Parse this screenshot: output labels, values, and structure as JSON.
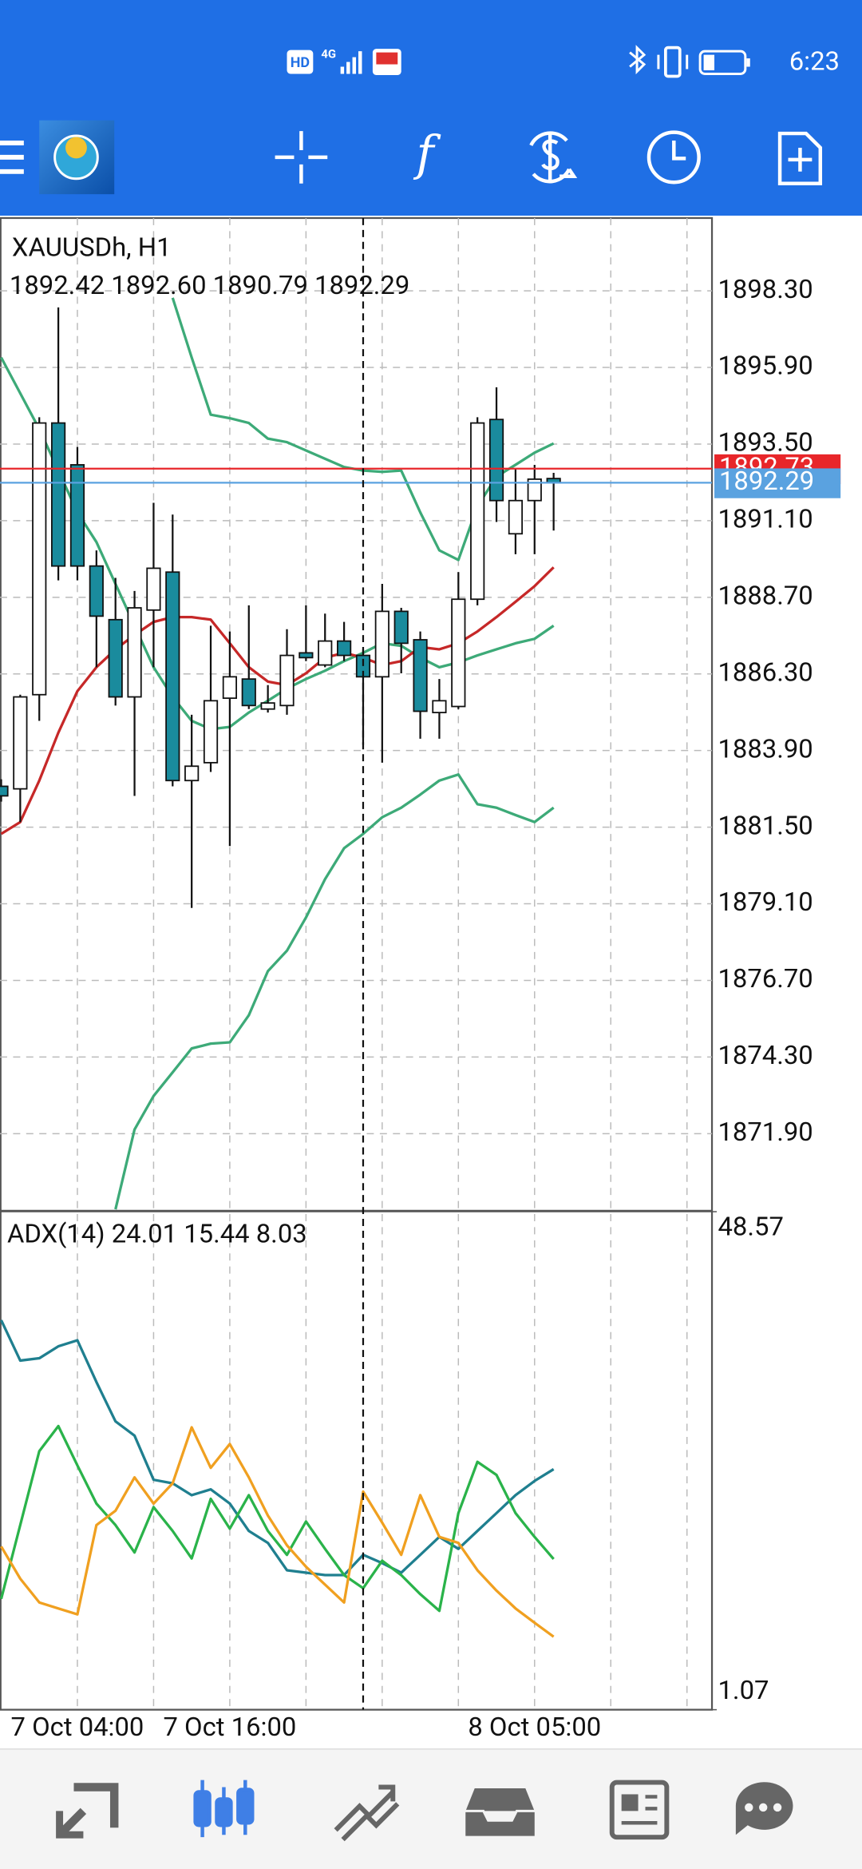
{
  "status_bar": {
    "network": "HD",
    "signal": "4G",
    "time": "6:23"
  },
  "toolbar": {
    "function_icon": "f"
  },
  "chart_data": [
    {
      "type": "candlestick",
      "title": "XAUUSDh, H1",
      "ohlc_label": "1892.42 1892.60 1890.79 1892.29",
      "categories": [
        null,
        null,
        null,
        null,
        "7 Oct 04:00",
        null,
        null,
        null,
        null,
        null,
        null,
        null,
        "7 Oct 16:00",
        null,
        null,
        null,
        null,
        null,
        null,
        null,
        null,
        null,
        null,
        null,
        null,
        null,
        null,
        null,
        "8 Oct 05:00",
        null
      ],
      "open": [
        1882.78,
        1882.7,
        1885.65,
        1894.16,
        1892.85,
        1889.68,
        1888.0,
        1885.58,
        1888.3,
        1889.49,
        1882.96,
        1883.52,
        1885.54,
        1886.14,
        1885.2,
        1885.31,
        1886.96,
        1886.58,
        1887.33,
        1886.88,
        1886.21,
        1888.26,
        1887.37,
        1885.09,
        1885.28,
        1888.64,
        1894.27,
        1890.69,
        1891.73,
        1892.42
      ],
      "high": [
        1883.0,
        1885.65,
        1894.34,
        1897.78,
        1893.41,
        1890.17,
        1889.31,
        1888.9,
        1891.66,
        1891.29,
        1885.02,
        1887.81,
        1887.63,
        1888.45,
        1885.95,
        1887.7,
        1888.45,
        1888.19,
        1887.93,
        1887.07,
        1889.12,
        1888.37,
        1887.63,
        1886.14,
        1889.49,
        1894.34,
        1895.28,
        1892.74,
        1892.85,
        1892.6
      ],
      "low": [
        1882.3,
        1881.66,
        1884.83,
        1889.23,
        1889.23,
        1886.51,
        1885.31,
        1882.48,
        1886.51,
        1882.78,
        1878.97,
        1883.23,
        1880.91,
        1885.2,
        1885.09,
        1885.02,
        1886.7,
        1886.51,
        1886.7,
        1884.08,
        1883.52,
        1886.32,
        1884.27,
        1884.27,
        1885.2,
        1888.45,
        1891.06,
        1890.05,
        1890.05,
        1890.79
      ],
      "close": [
        1882.48,
        1885.58,
        1894.16,
        1889.68,
        1889.68,
        1888.11,
        1885.58,
        1888.37,
        1889.61,
        1882.96,
        1883.41,
        1885.46,
        1886.21,
        1885.31,
        1885.39,
        1886.88,
        1886.81,
        1887.33,
        1886.88,
        1886.21,
        1888.26,
        1887.26,
        1885.13,
        1885.46,
        1888.64,
        1894.16,
        1891.73,
        1891.73,
        1892.4,
        1892.29
      ],
      "up_color": "#ffffff",
      "down_color": "#1a8b9d",
      "ylim": [
        1869.53,
        1900.58
      ],
      "yticks": [
        {
          "value": 1898.3,
          "label": "1898.30"
        },
        {
          "value": 1895.9,
          "label": "1895.90"
        },
        {
          "value": 1893.5,
          "label": "1893.50"
        },
        {
          "value": 1891.1,
          "label": "1891.10"
        },
        {
          "value": 1888.7,
          "label": "1888.70"
        },
        {
          "value": 1886.3,
          "label": "1886.30"
        },
        {
          "value": 1883.9,
          "label": "1883.90"
        },
        {
          "value": 1881.5,
          "label": "1881.50"
        },
        {
          "value": 1879.1,
          "label": "1879.10"
        },
        {
          "value": 1876.7,
          "label": "1876.70"
        },
        {
          "value": 1874.3,
          "label": "1874.30"
        },
        {
          "value": 1871.9,
          "label": "1871.90"
        }
      ],
      "grid": true,
      "price_lines": [
        {
          "value": 1892.73,
          "label": "1892.73",
          "color": "#e8262a"
        },
        {
          "value": 1892.29,
          "label": "1892.29",
          "color": "#5aa2e0"
        }
      ],
      "series": [
        {
          "color": "#3daa78",
          "values": [
            null,
            null,
            null,
            null,
            null,
            null,
            null,
            null,
            null,
            1898.08,
            1896.21,
            1894.42,
            1894.31,
            1894.16,
            1893.67,
            1893.56,
            1893.3,
            1893.04,
            1892.78,
            1892.67,
            1892.63,
            1892.67,
            1891.36,
            1890.17,
            1889.87,
            1891.55,
            1892.48,
            1892.85,
            1893.23,
            1893.52
          ]
        },
        {
          "color": "#3daa78",
          "values": [
            1896.21,
            1895.09,
            1893.97,
            1892.67,
            1891.36,
            1890.43,
            1889.12,
            1887.81,
            1886.51,
            1885.58,
            1884.83,
            1884.57,
            1884.64,
            1885.09,
            1885.46,
            1885.84,
            1886.14,
            1886.4,
            1886.7,
            1886.96,
            1887.26,
            1887.18,
            1886.81,
            1886.51,
            1886.66,
            1886.88,
            1887.07,
            1887.26,
            1887.4,
            1887.81
          ]
        },
        {
          "color": "#3daa78",
          "values": [
            null,
            null,
            null,
            null,
            null,
            null,
            1869.53,
            1872.03,
            1873.08,
            1873.82,
            1874.57,
            1874.72,
            1874.76,
            1875.61,
            1876.99,
            1877.63,
            1878.67,
            1879.87,
            1880.84,
            1881.29,
            1881.81,
            1882.11,
            1882.52,
            1882.96,
            1883.15,
            1882.22,
            1882.11,
            1881.88,
            1881.66,
            1882.11
          ]
        },
        {
          "color": "#c62828",
          "values": [
            1881.29,
            1881.66,
            1882.96,
            1884.46,
            1885.76,
            1886.51,
            1887.07,
            1887.52,
            1887.93,
            1888.08,
            1888.08,
            1888.0,
            1887.26,
            1886.51,
            1886.06,
            1885.95,
            1886.32,
            1886.81,
            1886.96,
            1886.81,
            1886.58,
            1886.7,
            1887.14,
            1887.07,
            1887.26,
            1887.63,
            1888.08,
            1888.56,
            1889.05,
            1889.64
          ]
        }
      ]
    },
    {
      "type": "line",
      "title": "ADX(14) 24.01 15.44 8.03",
      "ylim": [
        1.07,
        48.57
      ],
      "yticks": [
        48.57,
        1.07
      ],
      "series": [
        {
          "color": "#1f7f8f",
          "values": [
            38.23,
            34.37,
            34.59,
            35.73,
            36.3,
            32.32,
            28.57,
            27.21,
            23.0,
            22.66,
            21.53,
            22.09,
            20.73,
            18.12,
            16.98,
            14.37,
            14.14,
            13.91,
            13.91,
            15.84,
            15.05,
            14.14,
            15.84,
            17.55,
            16.41,
            18.12,
            19.82,
            21.53,
            22.89,
            24.01
          ]
        },
        {
          "color": "#2ab34a",
          "values": [
            11.64,
            18.68,
            25.73,
            28.12,
            24.37,
            20.73,
            18.68,
            16.07,
            20.39,
            18.12,
            15.5,
            21.18,
            18.34,
            21.53,
            18.12,
            15.84,
            19.02,
            16.41,
            13.91,
            12.66,
            15.28,
            13.91,
            12.09,
            10.5,
            19.82,
            24.71,
            23.46,
            19.82,
            17.55,
            15.44
          ]
        },
        {
          "color": "#f0a020",
          "values": [
            16.64,
            13.57,
            11.3,
            10.73,
            10.16,
            18.68,
            20.05,
            23.23,
            20.73,
            22.66,
            28.0,
            24.14,
            26.41,
            23.23,
            19.59,
            16.75,
            14.71,
            13.0,
            11.3,
            21.87,
            18.91,
            15.84,
            21.53,
            17.55,
            16.98,
            14.37,
            12.43,
            10.73,
            9.36,
            8.03
          ]
        }
      ]
    }
  ]
}
